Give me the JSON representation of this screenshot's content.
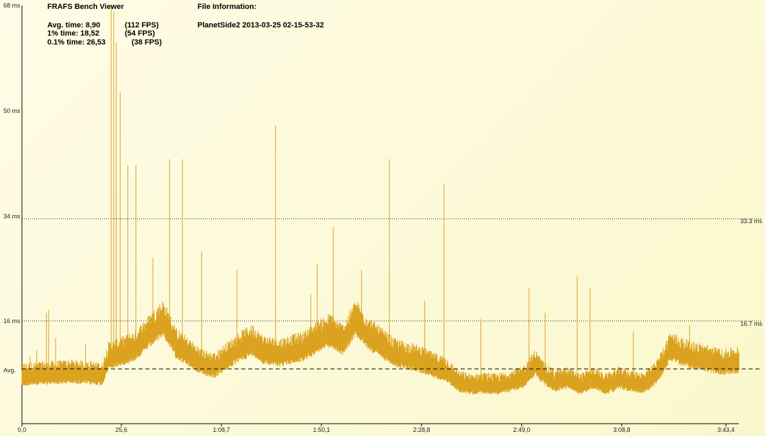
{
  "header": {
    "app_title": "FRAFS Bench Viewer",
    "file_info_label": "File Information:",
    "file_name": "PlanetSide2 2013-03-25 02-15-53-32"
  },
  "stats": [
    {
      "label": "Avg. time: 8,90",
      "fps": "(112 FPS)"
    },
    {
      "label": "1% time: 18,52",
      "fps": "(54 FPS)"
    },
    {
      "label": "0.1% time: 26,53",
      "fps": "(38 FPS)"
    }
  ],
  "chart_data": {
    "type": "area",
    "title": "",
    "xlabel": "",
    "ylabel": "",
    "y_tick_labels": [
      "68 ms",
      "50 ms",
      "34 ms",
      "16 ms",
      "Avg."
    ],
    "x_tick_labels": [
      "0,0",
      "25,6",
      "1:08,7",
      "1:50,1",
      "2:28,8",
      "2:49,0",
      "3:08,8",
      "3:43,4"
    ],
    "reference_lines": [
      {
        "label": "33.3 ms",
        "value": 33.3,
        "style": "dotted"
      },
      {
        "label": "16.7 ms",
        "value": 16.7,
        "style": "dotted"
      }
    ],
    "avg_line": {
      "label": "Avg.",
      "value": 8.9,
      "style": "dashed"
    },
    "ylim": [
      0,
      68
    ],
    "xlim_seconds": [
      0,
      223.4
    ],
    "color": "#dba21f",
    "series": [
      {
        "values_ms": [
          [
            0,
            7.5
          ],
          [
            5,
            7.7
          ],
          [
            10,
            7.8
          ],
          [
            15,
            8.0
          ],
          [
            20,
            7.9
          ],
          [
            25,
            7.6
          ],
          [
            27,
            10.5
          ],
          [
            30,
            11.0
          ],
          [
            35,
            12.0
          ],
          [
            40,
            14.5
          ],
          [
            44,
            16.5
          ],
          [
            48,
            12.5
          ],
          [
            52,
            11.0
          ],
          [
            56,
            9.5
          ],
          [
            60,
            9.0
          ],
          [
            64,
            10.5
          ],
          [
            68,
            12.0
          ],
          [
            72,
            13.0
          ],
          [
            75,
            11.5
          ],
          [
            80,
            11.0
          ],
          [
            84,
            11.5
          ],
          [
            88,
            12.0
          ],
          [
            92,
            13.5
          ],
          [
            96,
            14.5
          ],
          [
            100,
            13.0
          ],
          [
            104,
            16.5
          ],
          [
            108,
            14.0
          ],
          [
            112,
            12.5
          ],
          [
            116,
            11.0
          ],
          [
            120,
            10.5
          ],
          [
            124,
            10.0
          ],
          [
            128,
            9.0
          ],
          [
            132,
            8.5
          ],
          [
            136,
            6.5
          ],
          [
            140,
            6.0
          ],
          [
            144,
            6.2
          ],
          [
            148,
            6.0
          ],
          [
            152,
            6.5
          ],
          [
            156,
            7.0
          ],
          [
            160,
            9.5
          ],
          [
            162,
            8.0
          ],
          [
            166,
            6.5
          ],
          [
            170,
            7.0
          ],
          [
            174,
            6.0
          ],
          [
            178,
            7.0
          ],
          [
            182,
            6.0
          ],
          [
            186,
            7.0
          ],
          [
            190,
            6.5
          ],
          [
            194,
            6.2
          ],
          [
            198,
            8.0
          ],
          [
            202,
            12.0
          ],
          [
            206,
            11.0
          ],
          [
            210,
            10.5
          ],
          [
            214,
            10.0
          ],
          [
            218,
            9.5
          ],
          [
            223.4,
            9.8
          ]
        ],
        "spikes_ms": [
          [
            2.5,
            11.0
          ],
          [
            4.6,
            12.0
          ],
          [
            7.6,
            18.0
          ],
          [
            8.3,
            18.5
          ],
          [
            10.5,
            14.0
          ],
          [
            19.8,
            13.0
          ],
          [
            27.8,
            68.0
          ],
          [
            28.6,
            67.0
          ],
          [
            29.4,
            62.0
          ],
          [
            30.6,
            54.0
          ],
          [
            33.0,
            42.0
          ],
          [
            35.5,
            42.0
          ],
          [
            40.8,
            27.0
          ],
          [
            46.0,
            43.0
          ],
          [
            50.0,
            43.0
          ],
          [
            56.0,
            28.0
          ],
          [
            67.0,
            25.0
          ],
          [
            79.0,
            48.5
          ],
          [
            90.0,
            21.0
          ],
          [
            92.0,
            26.0
          ],
          [
            97.0,
            32.0
          ],
          [
            105.8,
            25.0
          ],
          [
            114.5,
            43.0
          ],
          [
            125.5,
            20.0
          ],
          [
            131.5,
            39.0
          ],
          [
            143.0,
            17.0
          ],
          [
            158.0,
            22.0
          ],
          [
            163.0,
            18.0
          ],
          [
            173.0,
            24.0
          ],
          [
            177.0,
            22.0
          ],
          [
            190.5,
            15.0
          ],
          [
            208.0,
            16.0
          ]
        ]
      }
    ]
  }
}
